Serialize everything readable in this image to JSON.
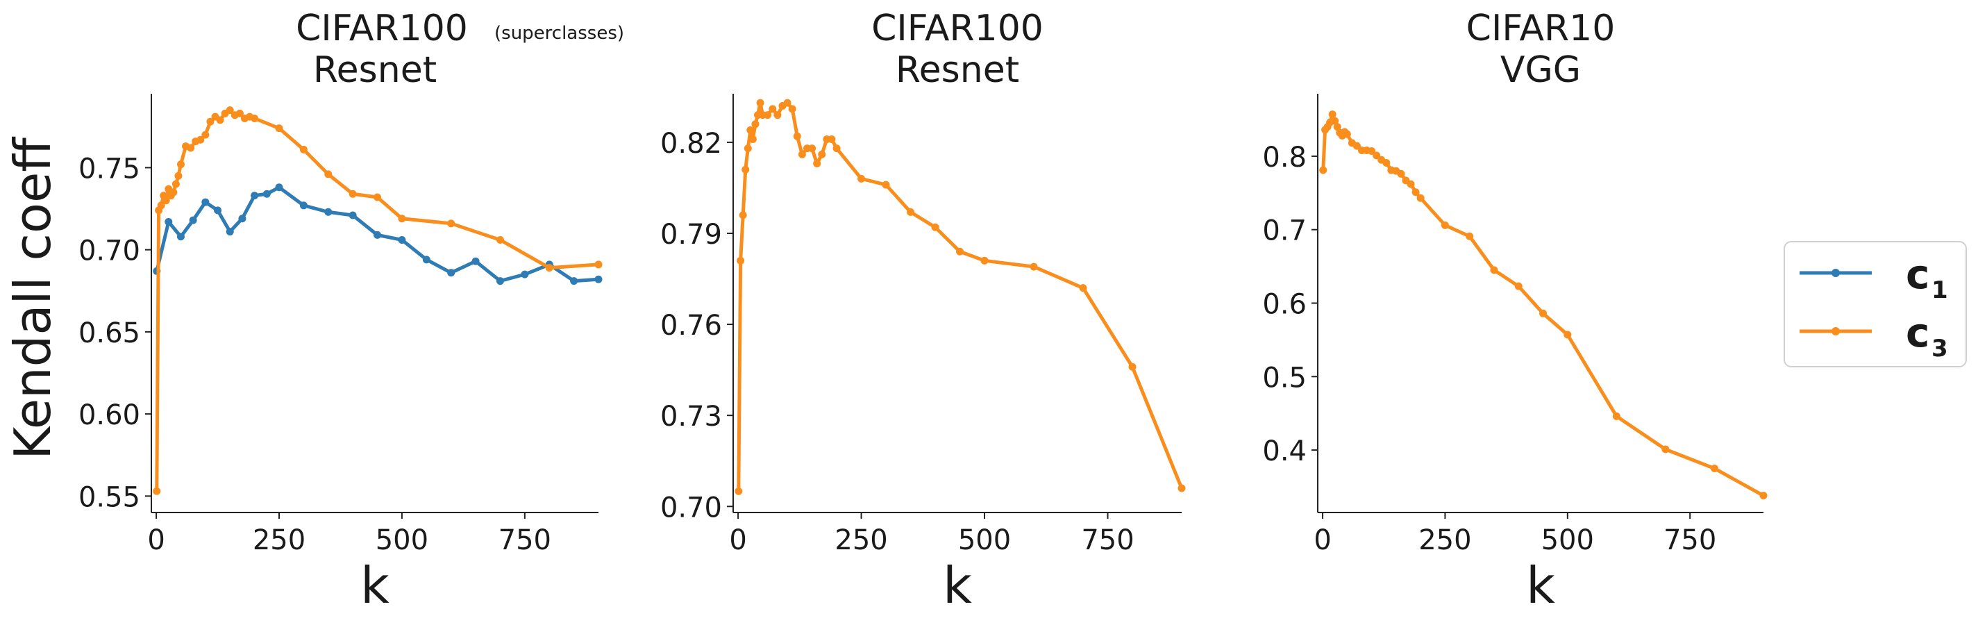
{
  "figure": {
    "ylabel": "Kendall coeff",
    "legend": [
      {
        "label": "c",
        "sub": "1",
        "color": "#2f7bb3"
      },
      {
        "label": "c",
        "sub": "3",
        "color": "#f98e1d"
      }
    ],
    "legend_placement": "right-center"
  },
  "chart_data": [
    {
      "type": "line",
      "title": "CIFAR100",
      "title_note": "(superclasses)",
      "subtitle": "Resnet",
      "xlabel": "k",
      "xlim": [
        -10,
        900
      ],
      "ylim": [
        0.54,
        0.795
      ],
      "xticks": [
        0,
        250,
        500,
        750
      ],
      "yticks": [
        0.55,
        0.6,
        0.65,
        0.7,
        0.75
      ],
      "ytick_labels": [
        "0.55",
        "0.60",
        "0.65",
        "0.70",
        "0.75"
      ],
      "grid": false,
      "series": [
        {
          "name": "c1",
          "color": "#2f7bb3",
          "x": [
            1,
            25,
            50,
            75,
            100,
            125,
            150,
            175,
            200,
            225,
            250,
            300,
            350,
            400,
            450,
            500,
            550,
            600,
            650,
            700,
            750,
            800,
            850,
            900
          ],
          "y": [
            0.687,
            0.717,
            0.708,
            0.718,
            0.729,
            0.724,
            0.711,
            0.719,
            0.733,
            0.734,
            0.738,
            0.727,
            0.723,
            0.721,
            0.709,
            0.706,
            0.694,
            0.686,
            0.693,
            0.681,
            0.685,
            0.691,
            0.681,
            0.682
          ]
        },
        {
          "name": "c3",
          "color": "#f98e1d",
          "x": [
            1,
            5,
            10,
            15,
            20,
            25,
            30,
            35,
            40,
            45,
            50,
            60,
            70,
            80,
            90,
            100,
            110,
            120,
            130,
            140,
            150,
            160,
            170,
            180,
            190,
            200,
            250,
            300,
            350,
            400,
            450,
            500,
            600,
            700,
            800,
            900
          ],
          "y": [
            0.553,
            0.724,
            0.727,
            0.733,
            0.73,
            0.737,
            0.733,
            0.735,
            0.74,
            0.745,
            0.752,
            0.763,
            0.762,
            0.766,
            0.767,
            0.77,
            0.778,
            0.781,
            0.779,
            0.783,
            0.785,
            0.782,
            0.783,
            0.78,
            0.781,
            0.78,
            0.774,
            0.761,
            0.746,
            0.734,
            0.732,
            0.719,
            0.716,
            0.706,
            0.689,
            0.691
          ]
        }
      ]
    },
    {
      "type": "line",
      "title": "CIFAR100",
      "subtitle": "Resnet",
      "xlabel": "k",
      "xlim": [
        -10,
        900
      ],
      "ylim": [
        0.698,
        0.836
      ],
      "xticks": [
        0,
        250,
        500,
        750
      ],
      "yticks": [
        0.7,
        0.73,
        0.76,
        0.79,
        0.82
      ],
      "ytick_labels": [
        "0.70",
        "0.73",
        "0.76",
        "0.79",
        "0.82"
      ],
      "grid": false,
      "series": [
        {
          "name": "c3",
          "color": "#f98e1d",
          "x": [
            1,
            5,
            10,
            15,
            20,
            25,
            30,
            35,
            40,
            45,
            50,
            60,
            70,
            80,
            90,
            100,
            110,
            120,
            130,
            140,
            150,
            160,
            170,
            180,
            190,
            200,
            250,
            300,
            350,
            400,
            450,
            500,
            600,
            700,
            800,
            900
          ],
          "y": [
            0.705,
            0.781,
            0.796,
            0.811,
            0.818,
            0.824,
            0.821,
            0.826,
            0.829,
            0.833,
            0.829,
            0.829,
            0.831,
            0.829,
            0.832,
            0.833,
            0.831,
            0.822,
            0.816,
            0.818,
            0.818,
            0.813,
            0.816,
            0.821,
            0.821,
            0.818,
            0.808,
            0.806,
            0.797,
            0.792,
            0.784,
            0.781,
            0.779,
            0.772,
            0.746,
            0.706
          ]
        }
      ]
    },
    {
      "type": "line",
      "title": "CIFAR10",
      "subtitle": "VGG",
      "xlabel": "k",
      "xlim": [
        -10,
        900
      ],
      "ylim": [
        0.315,
        0.885
      ],
      "xticks": [
        0,
        250,
        500,
        750
      ],
      "yticks": [
        0.4,
        0.5,
        0.6,
        0.7,
        0.8
      ],
      "ytick_labels": [
        "0.4",
        "0.5",
        "0.6",
        "0.7",
        "0.8"
      ],
      "grid": false,
      "series": [
        {
          "name": "c3",
          "color": "#f98e1d",
          "x": [
            1,
            5,
            10,
            15,
            20,
            25,
            30,
            35,
            40,
            45,
            50,
            60,
            70,
            80,
            90,
            100,
            110,
            120,
            130,
            140,
            150,
            160,
            170,
            180,
            190,
            200,
            250,
            300,
            350,
            400,
            450,
            500,
            600,
            700,
            800,
            900
          ],
          "y": [
            0.781,
            0.836,
            0.84,
            0.846,
            0.857,
            0.848,
            0.84,
            0.832,
            0.828,
            0.833,
            0.83,
            0.818,
            0.814,
            0.808,
            0.808,
            0.807,
            0.801,
            0.795,
            0.791,
            0.781,
            0.78,
            0.776,
            0.767,
            0.762,
            0.751,
            0.743,
            0.706,
            0.691,
            0.645,
            0.623,
            0.586,
            0.557,
            0.446,
            0.401,
            0.375,
            0.338
          ]
        }
      ]
    }
  ]
}
